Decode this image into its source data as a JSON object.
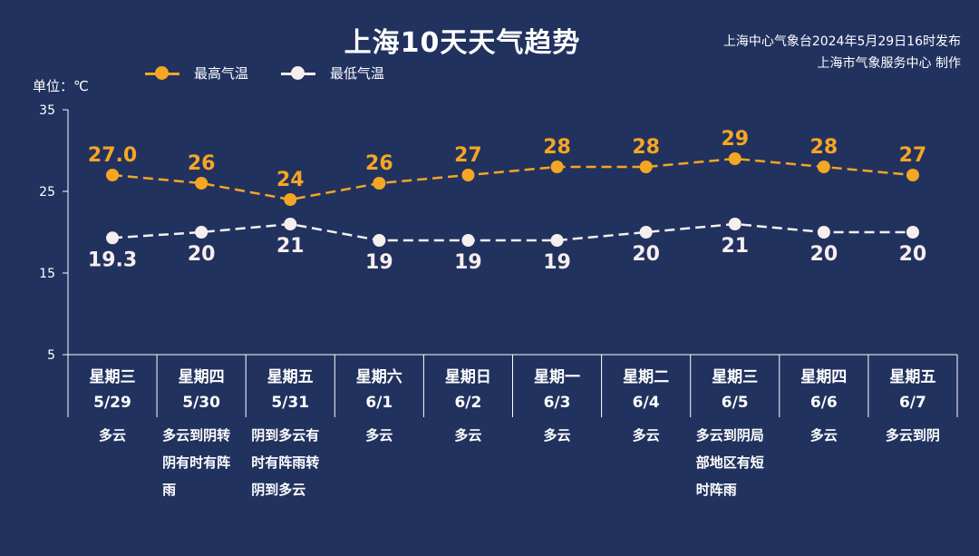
{
  "header": {
    "title": "上海10天天气趋势",
    "publisher_line1": "上海中心气象台2024年5月29日16时发布",
    "publisher_line2": "上海市气象服务中心 制作"
  },
  "legend": {
    "high_label": "最高气温",
    "low_label": "最低气温"
  },
  "unit_label": "单位：℃",
  "colors": {
    "background": "#22325f",
    "high": "#f5a623",
    "low": "#f7eeee",
    "axis": "#ffffff"
  },
  "chart_data": {
    "type": "line",
    "ylim": [
      5,
      35
    ],
    "yticks": [
      5,
      15,
      25,
      35
    ],
    "categories": [
      "5/29",
      "5/30",
      "5/31",
      "6/1",
      "6/2",
      "6/3",
      "6/4",
      "6/5",
      "6/6",
      "6/7"
    ],
    "series": [
      {
        "name": "最高气温",
        "values": [
          27.0,
          26,
          24,
          26,
          27,
          28,
          28,
          29,
          28,
          27
        ],
        "labels": [
          "27.0",
          "26",
          "24",
          "26",
          "27",
          "28",
          "28",
          "29",
          "28",
          "27"
        ]
      },
      {
        "name": "最低气温",
        "values": [
          19.3,
          20,
          21,
          19,
          19,
          19,
          20,
          21,
          20,
          20
        ],
        "labels": [
          "19.3",
          "20",
          "21",
          "19",
          "19",
          "19",
          "20",
          "21",
          "20",
          "20"
        ]
      }
    ]
  },
  "days": [
    {
      "weekday": "星期三",
      "date": "5/29",
      "weather": "多云"
    },
    {
      "weekday": "星期四",
      "date": "5/30",
      "weather": "多云到阴转阴有时有阵雨"
    },
    {
      "weekday": "星期五",
      "date": "5/31",
      "weather": "阴到多云有时有阵雨转阴到多云"
    },
    {
      "weekday": "星期六",
      "date": "6/1",
      "weather": "多云"
    },
    {
      "weekday": "星期日",
      "date": "6/2",
      "weather": "多云"
    },
    {
      "weekday": "星期一",
      "date": "6/3",
      "weather": "多云"
    },
    {
      "weekday": "星期二",
      "date": "6/4",
      "weather": "多云"
    },
    {
      "weekday": "星期三",
      "date": "6/5",
      "weather": "多云到阴局部地区有短时阵雨"
    },
    {
      "weekday": "星期四",
      "date": "6/6",
      "weather": "多云"
    },
    {
      "weekday": "星期五",
      "date": "6/7",
      "weather": "多云到阴"
    }
  ]
}
